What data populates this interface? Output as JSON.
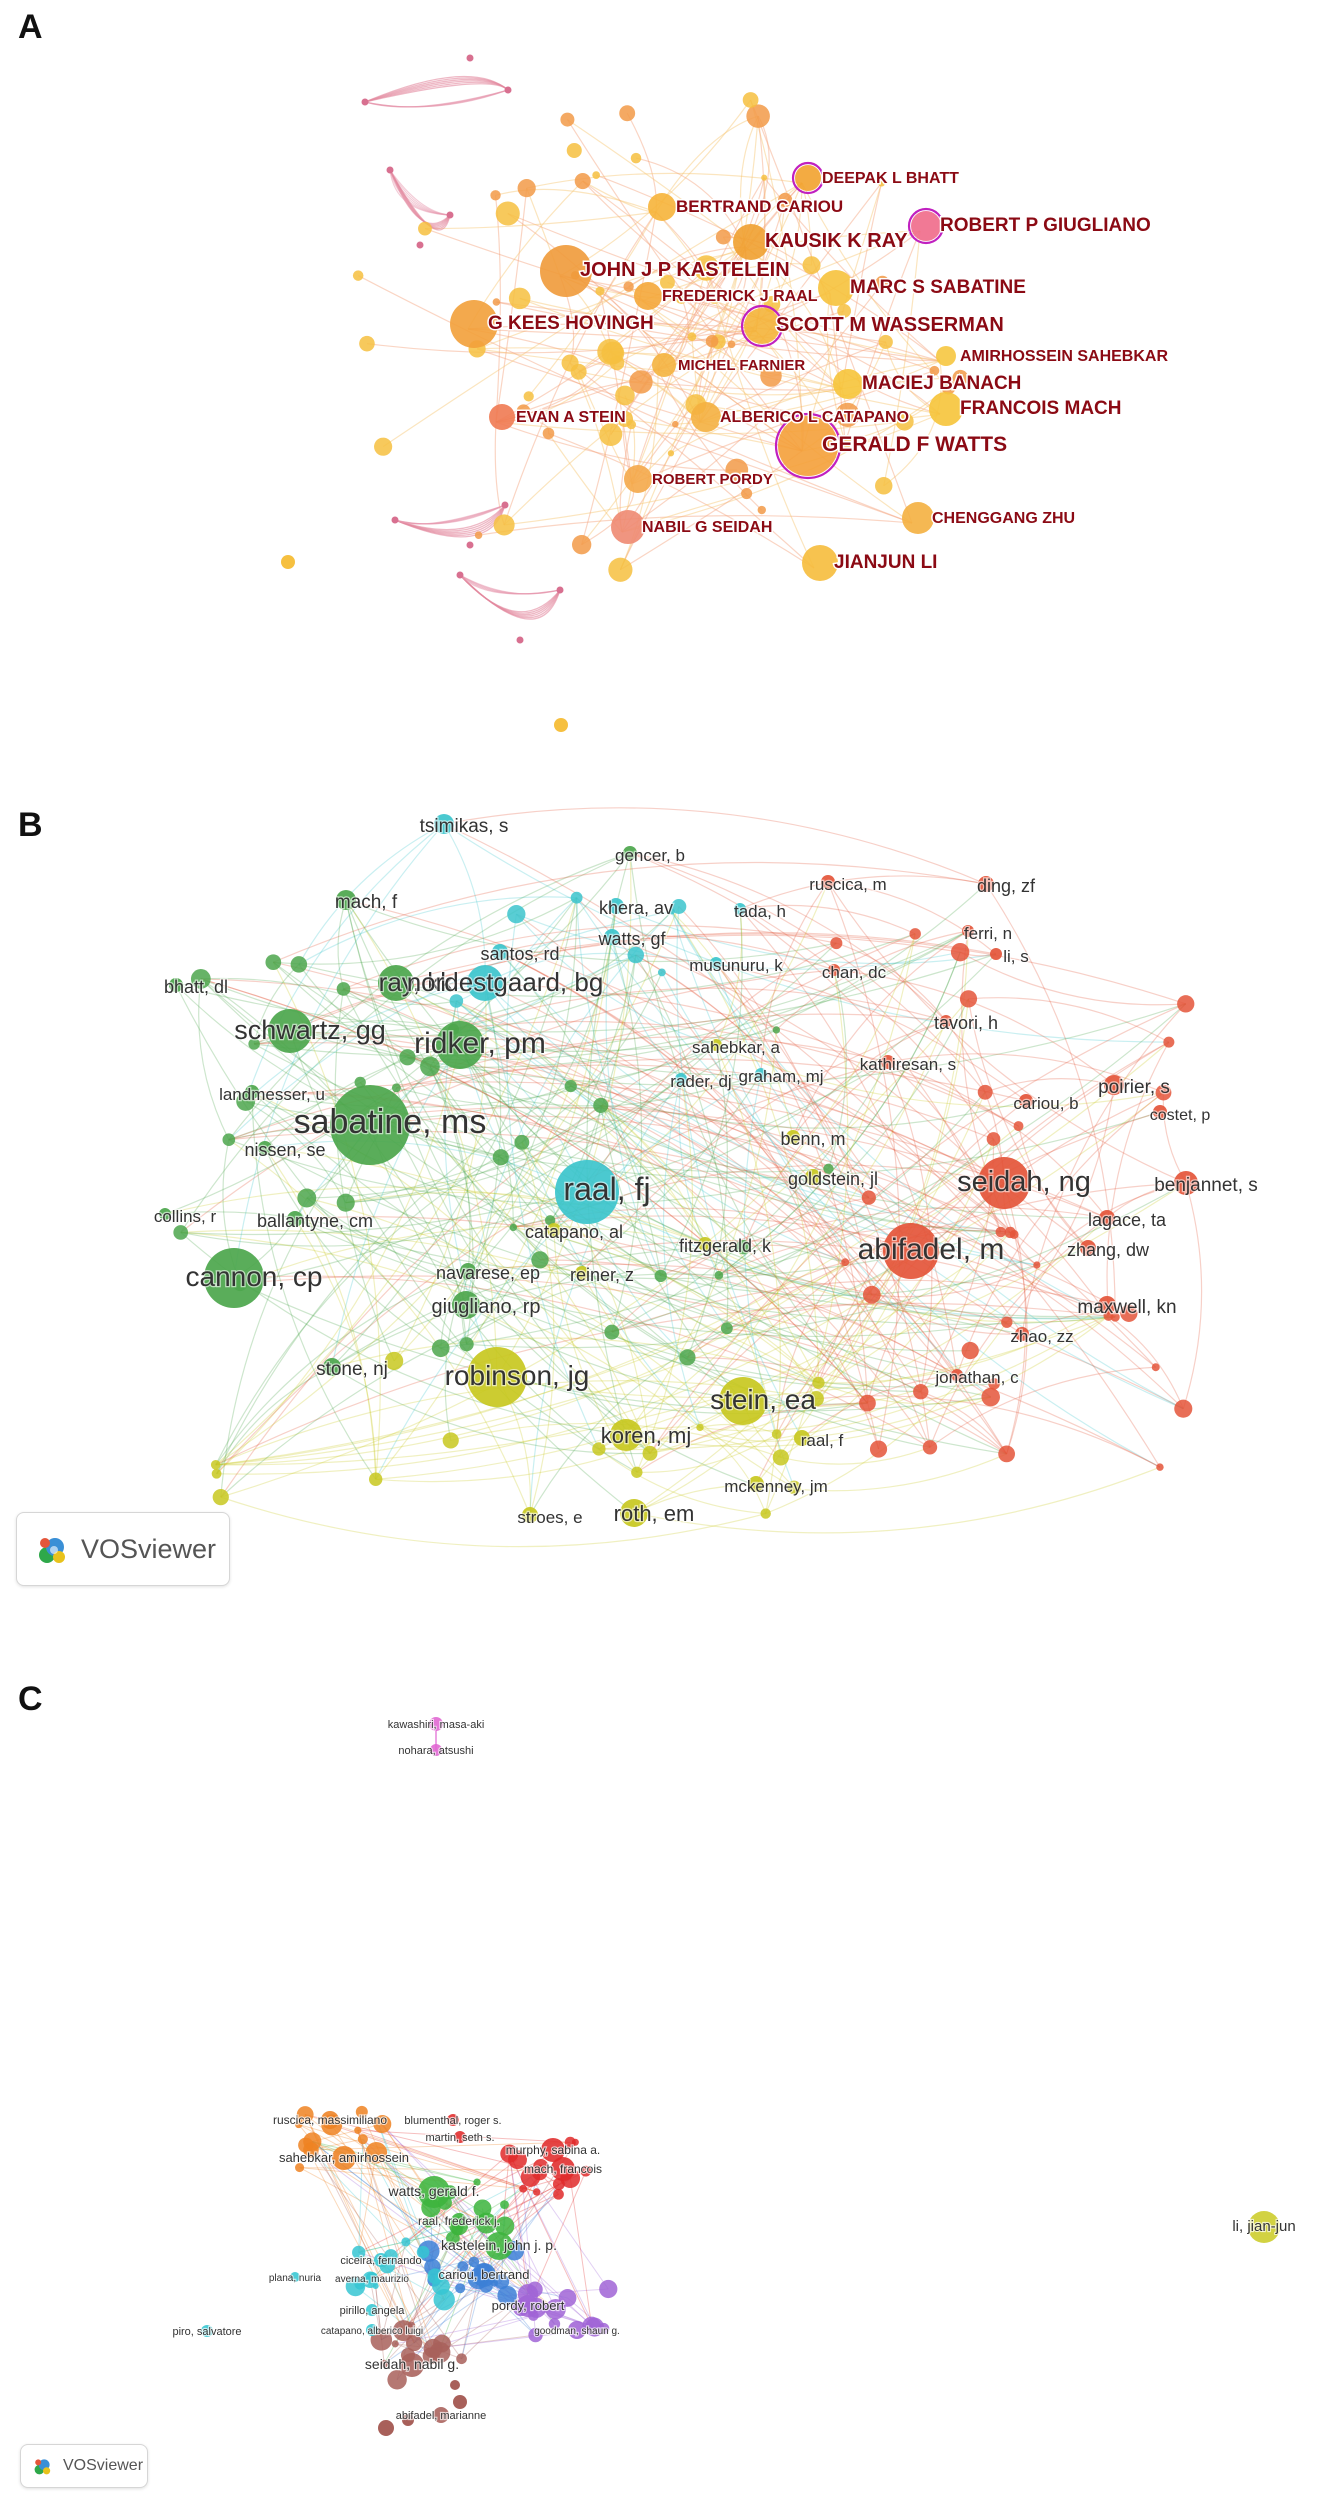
{
  "panels": {
    "a": {
      "letter": "A"
    },
    "b": {
      "letter": "B"
    },
    "c": {
      "letter": "C"
    }
  },
  "vosviewer": {
    "label": "VOSviewer"
  },
  "panel_a_labels": [
    "DEEPAK L BHATT",
    "BERTRAND CARIOU",
    "ROBERT P GIUGLIANO",
    "KAUSIK K RAY",
    "JOHN J P KASTELEIN",
    "MARC S SABATINE",
    "FREDERICK J RAAL",
    "G KEES HOVINGH",
    "SCOTT M WASSERMAN",
    "AMIRHOSSEIN SAHEBKAR",
    "MICHEL FARNIER",
    "MACIEJ BANACH",
    "FRANCOIS MACH",
    "EVAN A STEIN",
    "ALBERICO L CATAPANO",
    "GERALD F WATTS",
    "ROBERT PORDY",
    "NABIL G SEIDAH",
    "CHENGGANG ZHU",
    "JIANJUN LI"
  ],
  "panel_b_labels": [
    "tsimikas, s",
    "gencer, b",
    "ruscica, m",
    "ding, zf",
    "mach, f",
    "khera, av",
    "tada, h",
    "ferri, n",
    "watts, gf",
    "li, s",
    "santos, rd",
    "musunuru, k",
    "chan, dc",
    "bhatt, dl",
    "ray, kk",
    "nordestgaard, bg",
    "tavori, h",
    "schwartz, gg",
    "ridker, pm",
    "sahebkar, a",
    "kathiresan, s",
    "rader, dj",
    "graham, mj",
    "poirier, s",
    "landmesser, u",
    "cariou, b",
    "costet, p",
    "sabatine, ms",
    "benn, m",
    "nissen, se",
    "goldstein, jl",
    "seidah, ng",
    "benjannet, s",
    "raal, fj",
    "lagace, ta",
    "collins, r",
    "ballantyne, cm",
    "catapano, al",
    "fitzgerald, k",
    "zhang, dw",
    "abifadel, m",
    "navarese, ep",
    "reiner, z",
    "cannon, cp",
    "maxwell, kn",
    "giugliano, rp",
    "zhao, zz",
    "stone, nj",
    "jonathan, c",
    "robinson, jg",
    "stein, ea",
    "koren, mj",
    "raal, f",
    "mckenney, jm",
    "stroes, e",
    "roth, em"
  ],
  "panel_c_labels": [
    "kawashiri, masa-aki",
    "nohara, atsushi",
    "ruscica, massimiliano",
    "blumenthal, roger s.",
    "martin, seth s.",
    "murphy, sabina a.",
    "sahebkar, amirhossein",
    "mach, francois",
    "watts, gerald f.",
    "raal, frederick j.",
    "kastelein, john j. p.",
    "ciceira, fernando",
    "averna, maurizio",
    "cariou, bertrand",
    "plana, nuria",
    "pordy, robert",
    "pirillo, angela",
    "goodman, shaun g.",
    "piro, salvatore",
    "catapano, alberico luigi",
    "seidah, nabil g.",
    "abifadel, marianne",
    "li, jian-jun"
  ],
  "colors": {
    "a_label": "#8b0a14",
    "a_highlight": "#c020c0",
    "b_red": "#e4553a",
    "b_green": "#4ca64c",
    "b_cyan": "#3cc4cc",
    "b_yellow": "#c8c820",
    "c_red": "#e02a2a",
    "c_green": "#3cb43c",
    "c_blue": "#3c7fd6",
    "c_purple": "#a064d6",
    "c_orange": "#ee8222",
    "c_brown": "#a8605a",
    "c_cyan": "#36c6d2",
    "c_pink": "#e064d2",
    "c_yellow": "#cccc28"
  }
}
